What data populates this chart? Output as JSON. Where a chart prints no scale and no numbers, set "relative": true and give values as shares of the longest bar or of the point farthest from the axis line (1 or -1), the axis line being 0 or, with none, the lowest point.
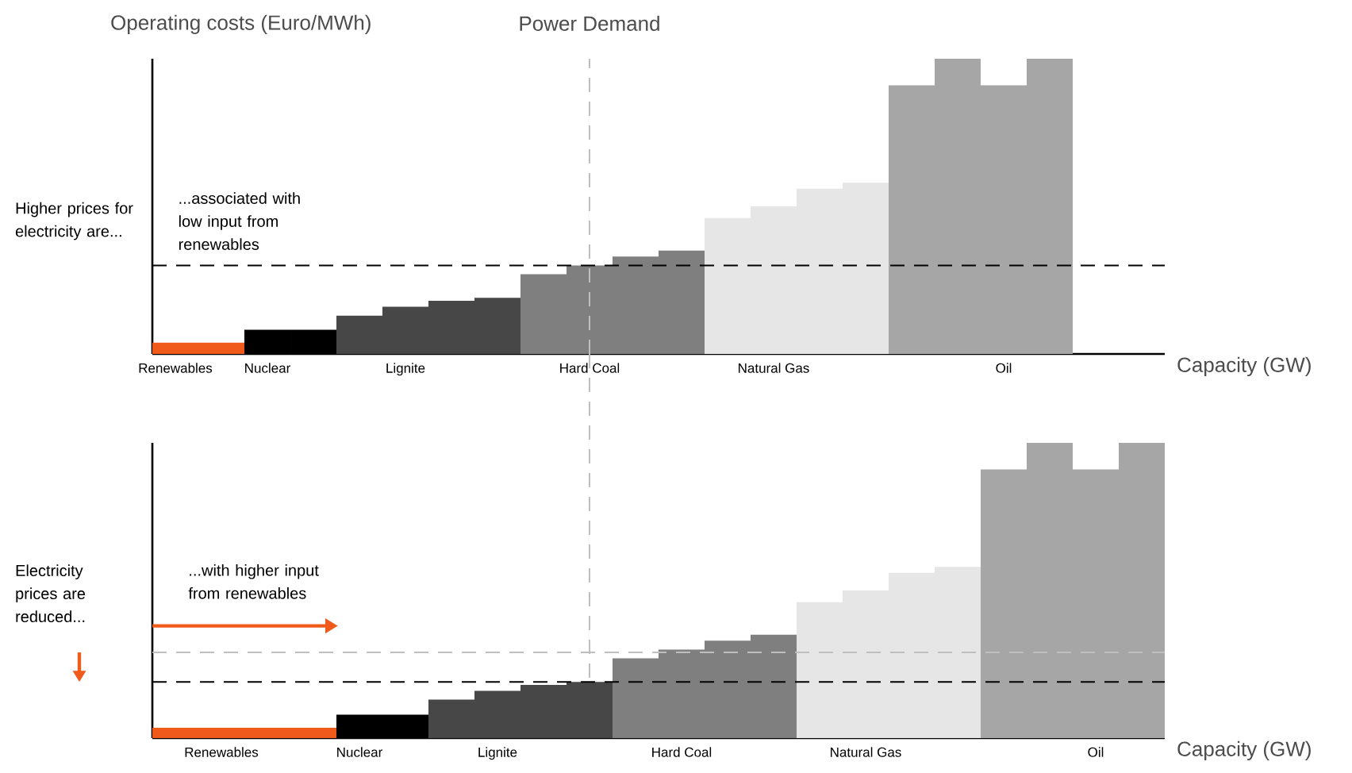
{
  "chart_data": [
    {
      "type": "bar",
      "relative": true,
      "ylabel": "Operating costs (Euro/MWh)",
      "xlabel": "Capacity (GW)",
      "tick_labels": "x",
      "categories": [
        "Renewables",
        null,
        "Nuclear",
        null,
        null,
        "Lignite",
        null,
        null,
        null,
        "Hard Coal",
        null,
        null,
        null,
        "Natural Gas",
        null,
        null,
        null,
        null,
        "Oil",
        null
      ],
      "values": [
        0.038,
        0.038,
        0.082,
        0.082,
        0.13,
        0.16,
        0.18,
        0.19,
        0.27,
        0.3,
        0.33,
        0.35,
        0.46,
        0.5,
        0.56,
        0.58,
        0.91,
        1.0,
        0.91,
        1.0
      ],
      "colors": [
        "#f05a1a",
        "#f05a1a",
        "#000000",
        "#000000",
        "#474747",
        "#474747",
        "#474747",
        "#474747",
        "#7f7f7f",
        "#7f7f7f",
        "#7f7f7f",
        "#7f7f7f",
        "#e6e6e6",
        "#e6e6e6",
        "#e6e6e6",
        "#e6e6e6",
        "#a6a6a6",
        "#a6a6a6",
        "#a6a6a6",
        "#a6a6a6"
      ],
      "ref_lines": [
        {
          "axis": "x",
          "value": "Hard Coal",
          "label": "Power Demand",
          "color": "#bfbfbf",
          "line_style": "dashed"
        },
        {
          "axis": "y",
          "value": 0.3,
          "color": "#000000",
          "line_style": "dashed"
        }
      ],
      "annotations": [
        "Higher prices for electricity are...",
        "...associated with low input from renewables"
      ]
    },
    {
      "type": "bar",
      "relative": true,
      "xlabel": "Capacity (GW)",
      "tick_labels": "x",
      "categories": [
        null,
        "Renewables",
        null,
        null,
        "Nuclear",
        null,
        null,
        "Lignite",
        null,
        null,
        null,
        "Hard Coal",
        null,
        null,
        null,
        "Natural Gas",
        null,
        null,
        null,
        null,
        "Oil",
        null
      ],
      "values": [
        0.035,
        0.035,
        0.035,
        0.035,
        0.079,
        0.079,
        0.13,
        0.16,
        0.18,
        0.19,
        0.27,
        0.3,
        0.33,
        0.35,
        0.46,
        0.5,
        0.56,
        0.58,
        0.91,
        1.0,
        0.91,
        1.0
      ],
      "colors": [
        "#f05a1a",
        "#f05a1a",
        "#f05a1a",
        "#f05a1a",
        "#000000",
        "#000000",
        "#474747",
        "#474747",
        "#474747",
        "#474747",
        "#7f7f7f",
        "#7f7f7f",
        "#7f7f7f",
        "#7f7f7f",
        "#e6e6e6",
        "#e6e6e6",
        "#e6e6e6",
        "#e6e6e6",
        "#a6a6a6",
        "#a6a6a6",
        "#a6a6a6",
        "#a6a6a6"
      ],
      "ref_lines": [
        {
          "axis": "y",
          "value": 0.29,
          "color": "#bfbfbf",
          "line_style": "dashed"
        },
        {
          "axis": "y",
          "value": 0.19,
          "color": "#000000",
          "line_style": "dashed"
        }
      ],
      "annotations": [
        "Electricity prices are reduced...",
        "...with higher input from renewables"
      ]
    }
  ]
}
